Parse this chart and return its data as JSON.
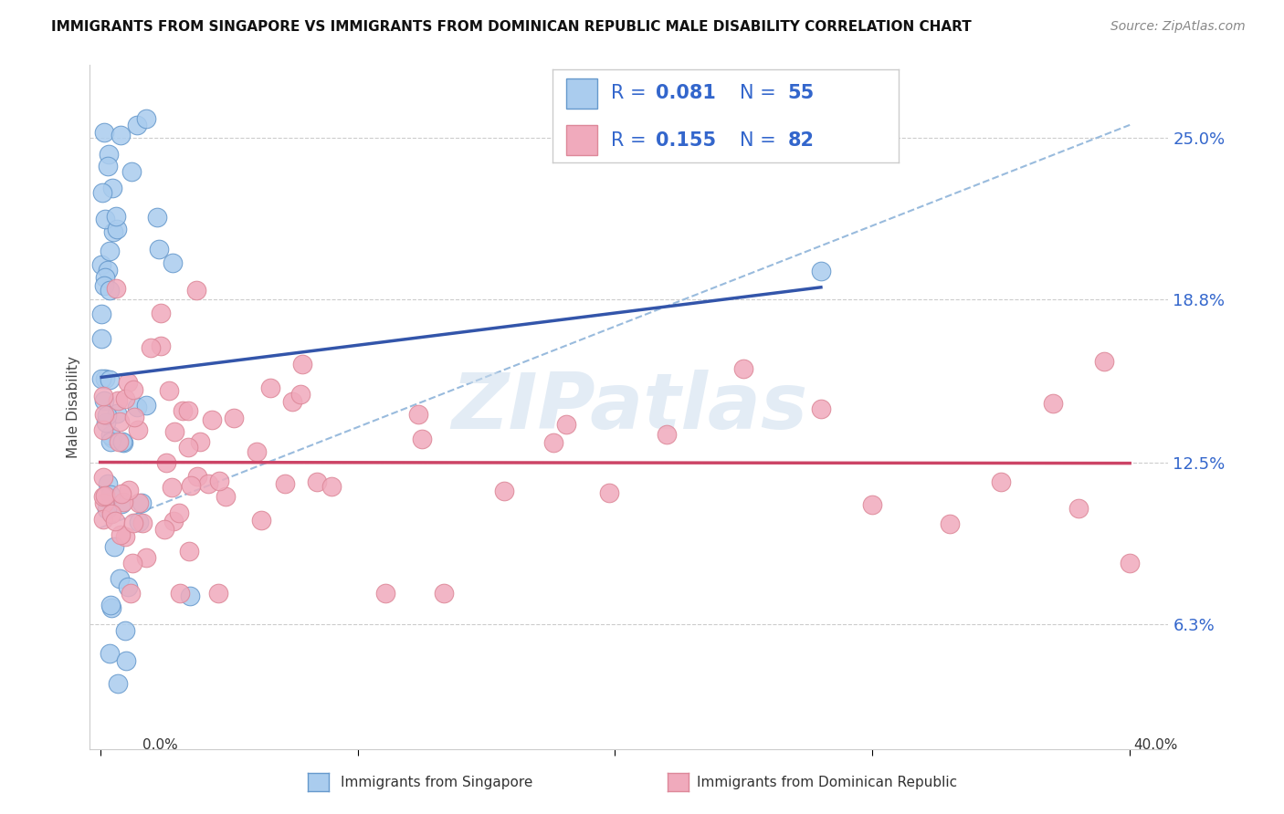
{
  "title": "IMMIGRANTS FROM SINGAPORE VS IMMIGRANTS FROM DOMINICAN REPUBLIC MALE DISABILITY CORRELATION CHART",
  "source": "Source: ZipAtlas.com",
  "ylabel": "Male Disability",
  "ytick_vals": [
    0.063,
    0.125,
    0.188,
    0.25
  ],
  "ytick_labels": [
    "6.3%",
    "12.5%",
    "18.8%",
    "25.0%"
  ],
  "xlim": [
    -0.004,
    0.415
  ],
  "ylim": [
    0.015,
    0.278
  ],
  "legend_r1_label": "R = ",
  "legend_r1_val": "0.081",
  "legend_n1_label": "  N = ",
  "legend_n1_val": "55",
  "legend_r2_label": "R = ",
  "legend_r2_val": "0.155",
  "legend_n2_label": "  N = ",
  "legend_n2_val": "82",
  "legend_text_color": "#3366cc",
  "legend_label_color": "#333333",
  "color_singapore": "#aaccee",
  "color_dominican": "#f0aabc",
  "edge_singapore": "#6699cc",
  "edge_dominican": "#dd8899",
  "trendline_singapore_color": "#3355aa",
  "trendline_dominican_color": "#cc4466",
  "diagonal_color": "#99bbdd",
  "background_color": "#ffffff",
  "label_singapore": "Immigrants from Singapore",
  "label_dominican": "Immigrants from Dominican Republic",
  "watermark": "ZIPatlas"
}
